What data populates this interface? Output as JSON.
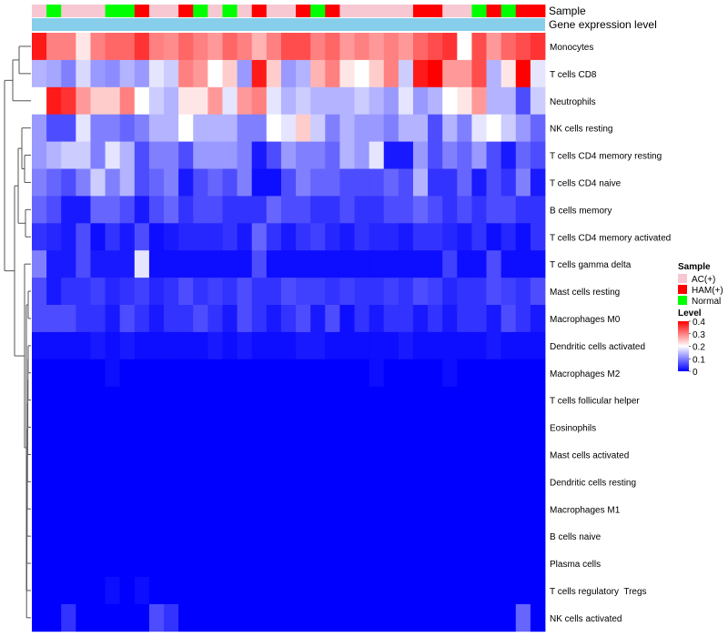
{
  "chart_data": {
    "type": "heatmap",
    "title": "",
    "annotation_labels": {
      "sample": "Sample",
      "expression": "Gene expression level"
    },
    "sample_legend": {
      "title": "Sample",
      "entries": [
        {
          "key": "AC",
          "label": "AC(+)",
          "color": "#f7c8d2"
        },
        {
          "key": "HAM",
          "label": "HAM(+)",
          "color": "#ff0000"
        },
        {
          "key": "Normal",
          "label": "Normal",
          "color": "#00ff00"
        }
      ]
    },
    "level_legend": {
      "title": "Level",
      "ticks": [
        "0.4",
        "0.3",
        "0.2",
        "0.1",
        "0"
      ],
      "tick_values": [
        0.4,
        0.3,
        0.2,
        0.1,
        0
      ],
      "range": [
        0,
        0.4
      ]
    },
    "colors": {
      "low": "#0000ff",
      "mid": "#ffffff",
      "high": "#ff0000",
      "expression_bar": "#87ceeb"
    },
    "sample_groups": [
      "AC",
      "Normal",
      "AC",
      "AC",
      "AC",
      "Normal",
      "Normal",
      "HAM",
      "AC",
      "AC",
      "HAM",
      "Normal",
      "AC",
      "Normal",
      "AC",
      "HAM",
      "AC",
      "AC",
      "HAM",
      "Normal",
      "HAM",
      "AC",
      "AC",
      "AC",
      "AC",
      "AC",
      "HAM",
      "HAM",
      "AC",
      "AC",
      "Normal",
      "HAM",
      "Normal",
      "HAM",
      "HAM"
    ],
    "rows": [
      {
        "label": "Monocytes",
        "values": [
          0.38,
          0.3,
          0.3,
          0.22,
          0.3,
          0.32,
          0.32,
          0.36,
          0.3,
          0.29,
          0.32,
          0.3,
          0.28,
          0.32,
          0.3,
          0.26,
          0.3,
          0.34,
          0.34,
          0.3,
          0.32,
          0.28,
          0.3,
          0.28,
          0.3,
          0.28,
          0.32,
          0.34,
          0.36,
          0.2,
          0.34,
          0.28,
          0.32,
          0.34,
          0.36
        ]
      },
      {
        "label": "T cells CD8",
        "values": [
          0.14,
          0.13,
          0.1,
          0.17,
          0.12,
          0.11,
          0.14,
          0.12,
          0.18,
          0.16,
          0.3,
          0.28,
          0.2,
          0.24,
          0.12,
          0.38,
          0.24,
          0.12,
          0.14,
          0.26,
          0.3,
          0.22,
          0.2,
          0.24,
          0.3,
          0.16,
          0.38,
          0.4,
          0.28,
          0.28,
          0.34,
          0.14,
          0.22,
          0.4,
          0.18
        ]
      },
      {
        "label": "Neutrophils",
        "values": [
          0.2,
          0.38,
          0.36,
          0.28,
          0.24,
          0.24,
          0.3,
          0.2,
          0.16,
          0.14,
          0.22,
          0.22,
          0.28,
          0.18,
          0.28,
          0.3,
          0.18,
          0.14,
          0.16,
          0.14,
          0.14,
          0.14,
          0.16,
          0.14,
          0.12,
          0.18,
          0.12,
          0.14,
          0.2,
          0.22,
          0.28,
          0.14,
          0.14,
          0.06,
          0.16
        ]
      },
      {
        "label": "NK cells resting",
        "values": [
          0.12,
          0.06,
          0.06,
          0.18,
          0.1,
          0.1,
          0.08,
          0.1,
          0.14,
          0.14,
          0.2,
          0.14,
          0.14,
          0.14,
          0.1,
          0.1,
          0.2,
          0.18,
          0.24,
          0.16,
          0.1,
          0.14,
          0.12,
          0.12,
          0.1,
          0.14,
          0.14,
          0.06,
          0.14,
          0.1,
          0.18,
          0.2,
          0.16,
          0.12,
          0.08
        ]
      },
      {
        "label": "T cells CD4 memory resting",
        "values": [
          0.12,
          0.14,
          0.16,
          0.16,
          0.1,
          0.18,
          0.14,
          0.06,
          0.1,
          0.1,
          0.06,
          0.12,
          0.12,
          0.12,
          0.1,
          0.02,
          0.06,
          0.12,
          0.1,
          0.1,
          0.08,
          0.14,
          0.12,
          0.18,
          0.02,
          0.02,
          0.12,
          0.06,
          0.1,
          0.08,
          0.12,
          0.06,
          0.02,
          0.08,
          0.06
        ]
      },
      {
        "label": "T cells CD4 naive",
        "values": [
          0.1,
          0.08,
          0.06,
          0.1,
          0.16,
          0.1,
          0.14,
          0.06,
          0.08,
          0.1,
          0.02,
          0.06,
          0.08,
          0.06,
          0.1,
          0.01,
          0.01,
          0.06,
          0.1,
          0.08,
          0.08,
          0.06,
          0.06,
          0.06,
          0.08,
          0.06,
          0.14,
          0.04,
          0.04,
          0.08,
          0.02,
          0.06,
          0.04,
          0.1,
          0.02
        ]
      },
      {
        "label": "B cells memory",
        "values": [
          0.08,
          0.06,
          0.02,
          0.02,
          0.08,
          0.08,
          0.06,
          0.02,
          0.06,
          0.08,
          0.04,
          0.06,
          0.06,
          0.04,
          0.04,
          0.04,
          0.08,
          0.06,
          0.06,
          0.04,
          0.04,
          0.06,
          0.04,
          0.04,
          0.06,
          0.06,
          0.08,
          0.06,
          0.04,
          0.06,
          0.04,
          0.06,
          0.06,
          0.04,
          0.04
        ]
      },
      {
        "label": "T cells CD4 memory activated",
        "values": [
          0.04,
          0.03,
          0.02,
          0.06,
          0.01,
          0.04,
          0.02,
          0.06,
          0.01,
          0.02,
          0.03,
          0.03,
          0.03,
          0.04,
          0.02,
          0.08,
          0.04,
          0.02,
          0.04,
          0.05,
          0.03,
          0.02,
          0.04,
          0.03,
          0.03,
          0.02,
          0.04,
          0.04,
          0.03,
          0.02,
          0.04,
          0.01,
          0.03,
          0.01,
          0.04
        ]
      },
      {
        "label": "T cells gamma delta",
        "values": [
          0.1,
          0.02,
          0.02,
          0.06,
          0.02,
          0.02,
          0.02,
          0.18,
          0.01,
          0.01,
          0.01,
          0.01,
          0.01,
          0.01,
          0.01,
          0.06,
          0.01,
          0.01,
          0.01,
          0.01,
          0.01,
          0.01,
          0.01,
          0.01,
          0.01,
          0.01,
          0.01,
          0.01,
          0.05,
          0.01,
          0.01,
          0.06,
          0.01,
          0.01,
          0.01
        ]
      },
      {
        "label": "Mast cells resting",
        "values": [
          0.06,
          0.02,
          0.04,
          0.04,
          0.05,
          0.03,
          0.04,
          0.05,
          0.03,
          0.04,
          0.06,
          0.04,
          0.05,
          0.04,
          0.06,
          0.04,
          0.04,
          0.06,
          0.05,
          0.05,
          0.04,
          0.05,
          0.04,
          0.04,
          0.05,
          0.04,
          0.06,
          0.05,
          0.03,
          0.04,
          0.04,
          0.06,
          0.05,
          0.04,
          0.06
        ]
      },
      {
        "label": "Macrophages M0",
        "values": [
          0.06,
          0.06,
          0.06,
          0.04,
          0.04,
          0.02,
          0.06,
          0.04,
          0.02,
          0.04,
          0.04,
          0.06,
          0.04,
          0.02,
          0.06,
          0.04,
          0.02,
          0.04,
          0.06,
          0.02,
          0.06,
          0.01,
          0.04,
          0.02,
          0.04,
          0.04,
          0.02,
          0.04,
          0.02,
          0.04,
          0.04,
          0.02,
          0.06,
          0.04,
          0.02
        ]
      },
      {
        "label": "Dendritic cells activated",
        "values": [
          0.01,
          0.01,
          0.01,
          0.01,
          0.02,
          0.01,
          0.02,
          0.01,
          0.01,
          0.01,
          0.01,
          0.01,
          0.02,
          0.01,
          0.02,
          0.01,
          0.01,
          0.01,
          0.02,
          0.02,
          0.01,
          0.01,
          0.01,
          0.01,
          0.01,
          0.02,
          0.01,
          0.01,
          0.01,
          0.01,
          0.01,
          0.02,
          0.01,
          0.01,
          0.01
        ]
      },
      {
        "label": "Macrophages M2",
        "values": [
          0.0,
          0.0,
          0.0,
          0.0,
          0.0,
          0.01,
          0.0,
          0.0,
          0.0,
          0.0,
          0.0,
          0.0,
          0.0,
          0.0,
          0.0,
          0.0,
          0.0,
          0.0,
          0.0,
          0.0,
          0.0,
          0.0,
          0.0,
          0.01,
          0.0,
          0.0,
          0.0,
          0.0,
          0.01,
          0.0,
          0.0,
          0.0,
          0.0,
          0.0,
          0.0
        ]
      },
      {
        "label": "T cells follicular helper",
        "values": [
          0.0,
          0.0,
          0.0,
          0.0,
          0.0,
          0.0,
          0.0,
          0.0,
          0.0,
          0.0,
          0.0,
          0.0,
          0.0,
          0.0,
          0.0,
          0.0,
          0.0,
          0.0,
          0.0,
          0.0,
          0.0,
          0.0,
          0.0,
          0.0,
          0.0,
          0.0,
          0.0,
          0.0,
          0.0,
          0.0,
          0.0,
          0.0,
          0.0,
          0.0,
          0.0
        ]
      },
      {
        "label": "Eosinophils",
        "values": [
          0.0,
          0.0,
          0.0,
          0.0,
          0.0,
          0.0,
          0.0,
          0.0,
          0.0,
          0.0,
          0.0,
          0.0,
          0.0,
          0.0,
          0.0,
          0.0,
          0.0,
          0.0,
          0.0,
          0.0,
          0.0,
          0.0,
          0.0,
          0.0,
          0.0,
          0.0,
          0.0,
          0.0,
          0.0,
          0.0,
          0.0,
          0.0,
          0.0,
          0.0,
          0.0
        ]
      },
      {
        "label": "Mast cells activated",
        "values": [
          0.0,
          0.0,
          0.0,
          0.0,
          0.0,
          0.0,
          0.0,
          0.0,
          0.0,
          0.0,
          0.0,
          0.0,
          0.0,
          0.0,
          0.0,
          0.0,
          0.0,
          0.0,
          0.0,
          0.0,
          0.0,
          0.0,
          0.0,
          0.0,
          0.0,
          0.0,
          0.0,
          0.0,
          0.0,
          0.0,
          0.0,
          0.0,
          0.0,
          0.0,
          0.0
        ]
      },
      {
        "label": "Dendritic cells resting",
        "values": [
          0.0,
          0.0,
          0.0,
          0.0,
          0.0,
          0.0,
          0.0,
          0.0,
          0.0,
          0.0,
          0.0,
          0.0,
          0.0,
          0.0,
          0.0,
          0.0,
          0.0,
          0.0,
          0.0,
          0.0,
          0.0,
          0.0,
          0.0,
          0.0,
          0.0,
          0.0,
          0.0,
          0.0,
          0.0,
          0.0,
          0.0,
          0.0,
          0.0,
          0.0,
          0.0
        ]
      },
      {
        "label": "Macrophages M1",
        "values": [
          0.0,
          0.0,
          0.0,
          0.0,
          0.0,
          0.0,
          0.0,
          0.0,
          0.0,
          0.0,
          0.0,
          0.0,
          0.0,
          0.0,
          0.0,
          0.0,
          0.0,
          0.0,
          0.0,
          0.0,
          0.0,
          0.0,
          0.0,
          0.0,
          0.0,
          0.0,
          0.0,
          0.0,
          0.0,
          0.0,
          0.0,
          0.0,
          0.0,
          0.0,
          0.0
        ]
      },
      {
        "label": "B cells naive",
        "values": [
          0.0,
          0.0,
          0.0,
          0.0,
          0.0,
          0.0,
          0.0,
          0.0,
          0.0,
          0.0,
          0.0,
          0.0,
          0.0,
          0.0,
          0.0,
          0.0,
          0.0,
          0.0,
          0.0,
          0.0,
          0.0,
          0.0,
          0.0,
          0.0,
          0.0,
          0.0,
          0.0,
          0.0,
          0.0,
          0.0,
          0.0,
          0.0,
          0.0,
          0.0,
          0.0
        ]
      },
      {
        "label": "Plasma cells",
        "values": [
          0.0,
          0.0,
          0.0,
          0.0,
          0.0,
          0.0,
          0.0,
          0.0,
          0.0,
          0.0,
          0.0,
          0.0,
          0.0,
          0.0,
          0.0,
          0.0,
          0.0,
          0.0,
          0.0,
          0.0,
          0.0,
          0.0,
          0.0,
          0.0,
          0.0,
          0.0,
          0.0,
          0.0,
          0.0,
          0.0,
          0.0,
          0.0,
          0.0,
          0.0,
          0.0
        ]
      },
      {
        "label": "T cells regulatory  Tregs",
        "values": [
          0.0,
          0.0,
          0.0,
          0.0,
          0.0,
          0.01,
          0.0,
          0.01,
          0.0,
          0.0,
          0.0,
          0.0,
          0.0,
          0.0,
          0.0,
          0.0,
          0.0,
          0.0,
          0.0,
          0.0,
          0.0,
          0.0,
          0.0,
          0.0,
          0.0,
          0.0,
          0.0,
          0.0,
          0.0,
          0.0,
          0.0,
          0.0,
          0.0,
          0.0,
          0.0
        ]
      },
      {
        "label": "NK cells activated",
        "values": [
          0.0,
          0.0,
          0.04,
          0.0,
          0.0,
          0.0,
          0.0,
          0.0,
          0.06,
          0.04,
          0.0,
          0.0,
          0.0,
          0.0,
          0.0,
          0.0,
          0.0,
          0.0,
          0.0,
          0.0,
          0.0,
          0.0,
          0.0,
          0.0,
          0.0,
          0.0,
          0.0,
          0.0,
          0.0,
          0.0,
          0.0,
          0.0,
          0.0,
          0.08,
          0.0
        ]
      }
    ]
  }
}
